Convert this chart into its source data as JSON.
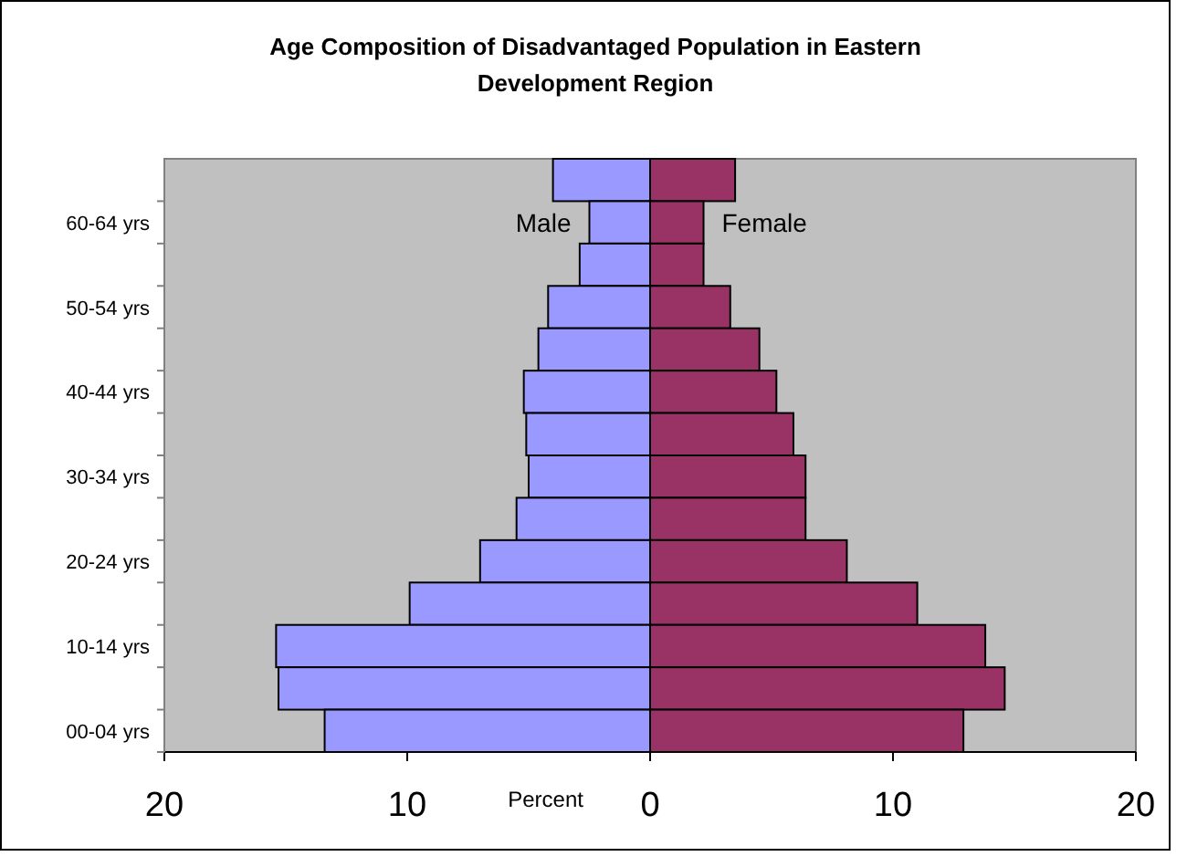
{
  "chart_data": {
    "type": "bar",
    "title": "Age Composition of Disadvantaged Population in Eastern Development Region",
    "xlabel": "Percent",
    "orientation": "horizontal",
    "stacked": true,
    "grid": false,
    "categories": [
      null,
      "60-64 yrs",
      null,
      "50-54 yrs",
      null,
      "40-44 yrs",
      null,
      "30-34 yrs",
      null,
      "20-24 yrs",
      null,
      "10-14 yrs",
      null,
      "00-04 yrs"
    ],
    "series": [
      {
        "name": "Male",
        "color": "#9999ff",
        "values": [
          -4.0,
          -2.5,
          -2.9,
          -4.2,
          -4.6,
          -5.2,
          -5.1,
          -5.0,
          -5.5,
          -7.0,
          -9.9,
          -15.4,
          -15.3,
          -13.4
        ]
      },
      {
        "name": "Female",
        "color": "#993366",
        "values": [
          3.5,
          2.2,
          2.2,
          3.3,
          4.5,
          5.2,
          5.9,
          6.4,
          6.4,
          8.1,
          11.0,
          13.8,
          14.6,
          12.9
        ]
      }
    ],
    "xlim": [
      -20,
      20
    ],
    "xticks": [
      {
        "value": -20,
        "label": "20"
      },
      {
        "value": -10,
        "label": "10"
      },
      0,
      10,
      20
    ]
  }
}
